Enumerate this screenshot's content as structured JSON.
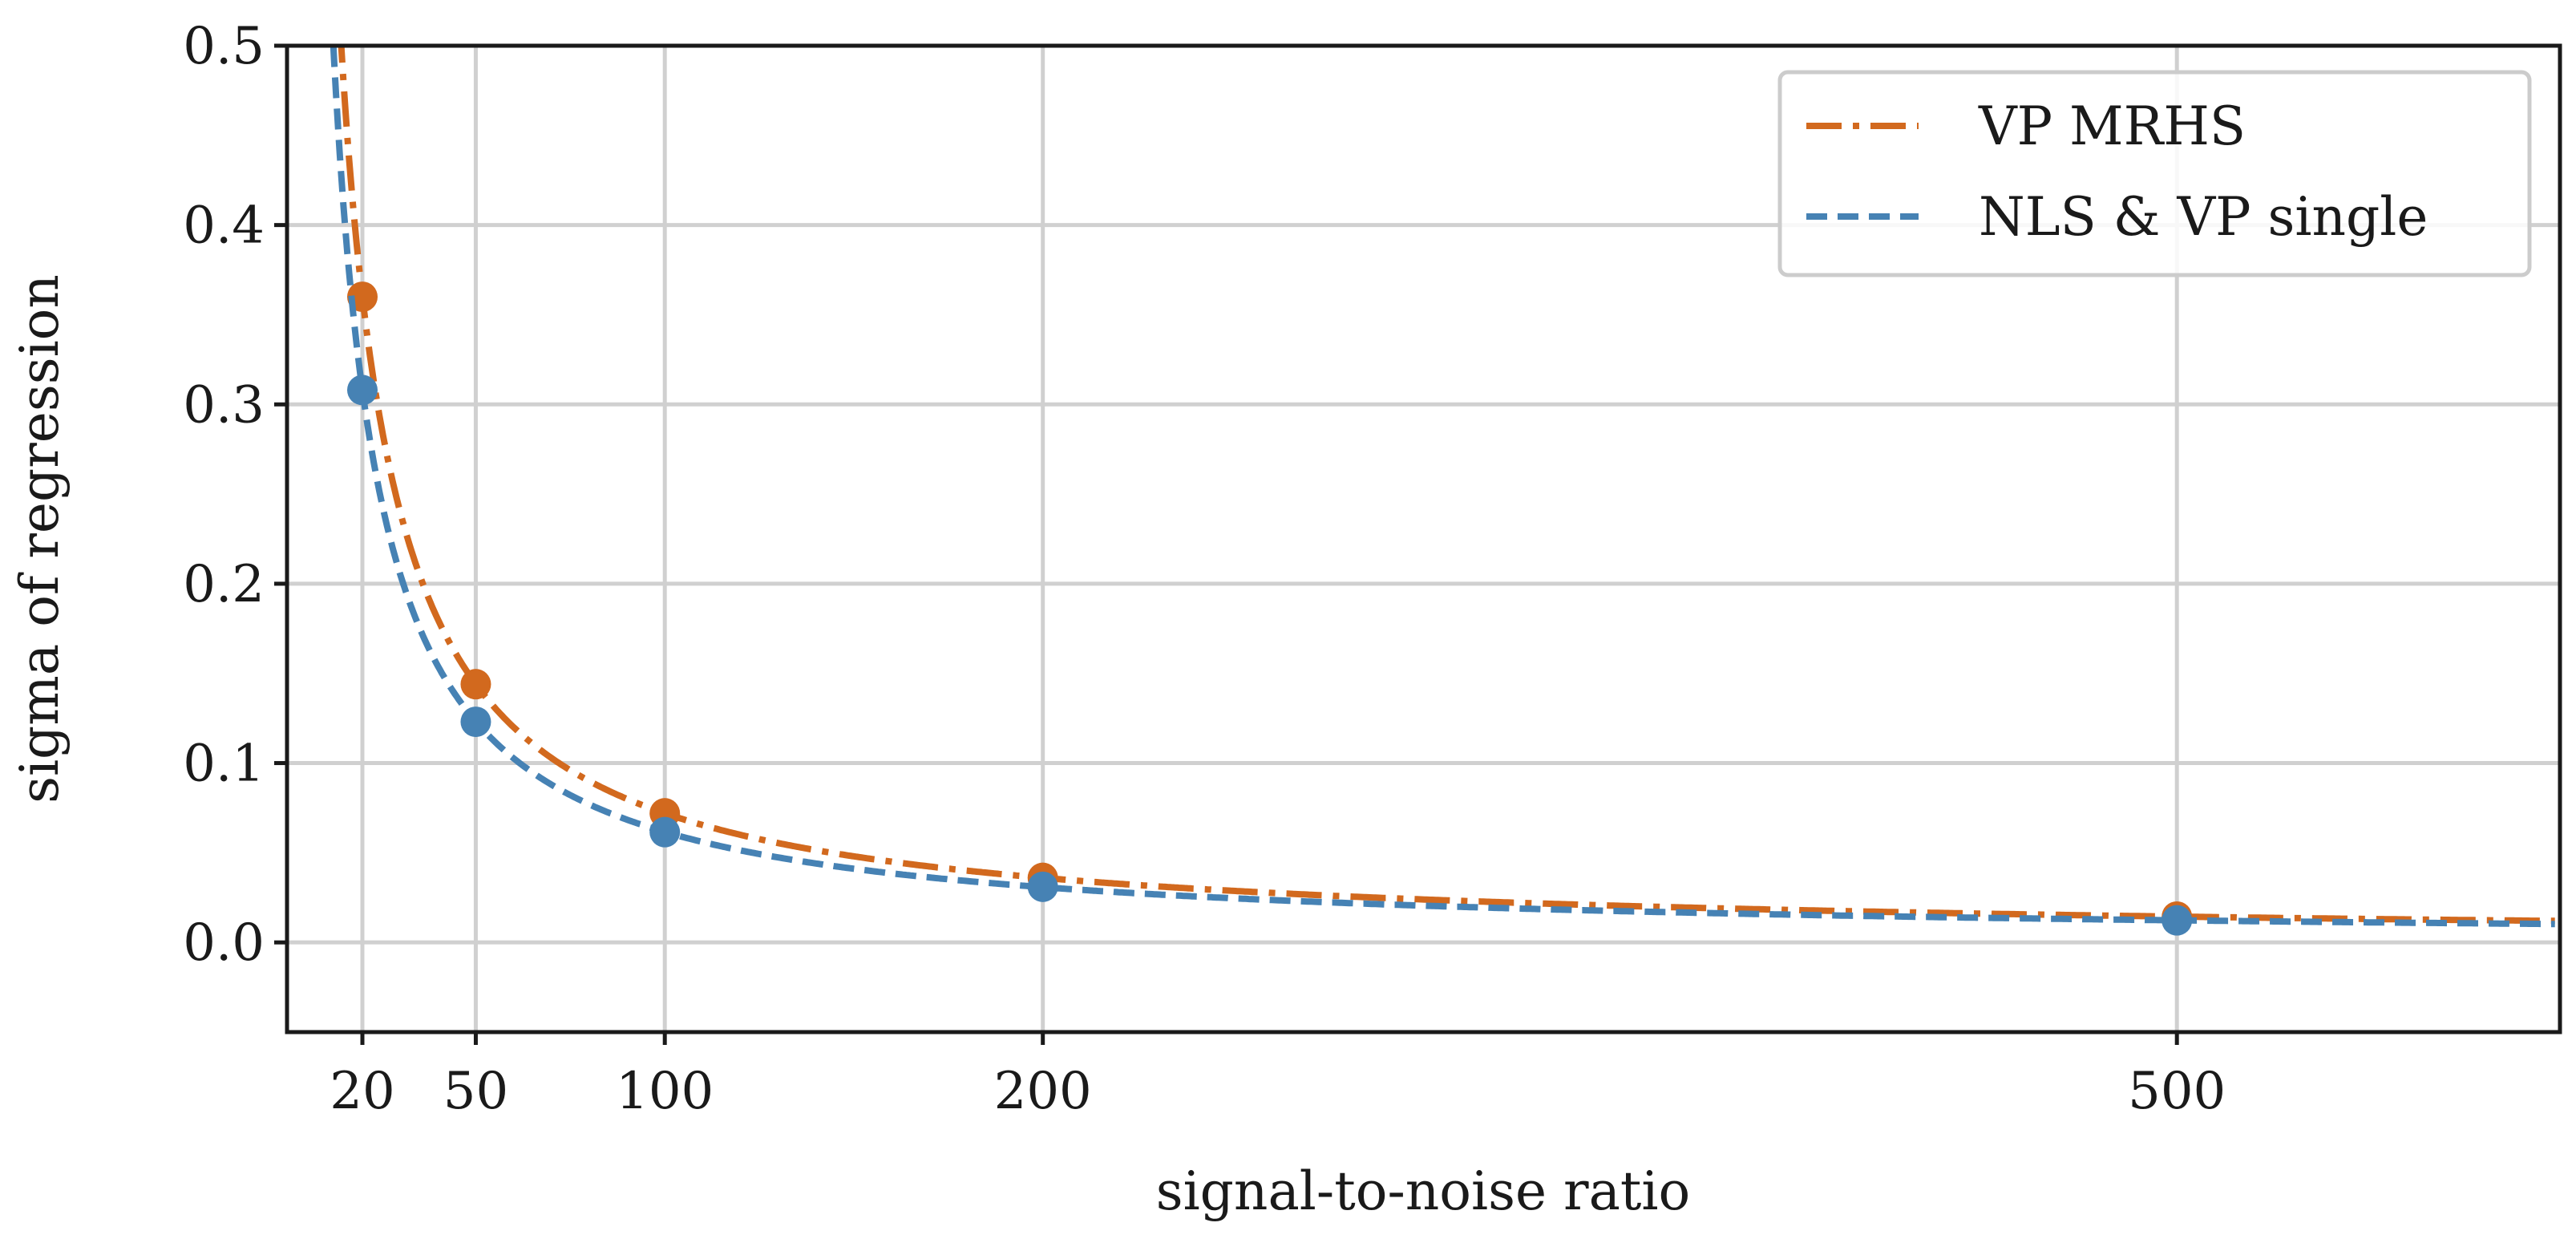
{
  "chart_data": {
    "type": "line",
    "title": "",
    "xlabel": "signal-to-noise ratio",
    "ylabel": "sigma of regression",
    "xlim": [
      0,
      600
    ],
    "ylim": [
      -0.05,
      0.5
    ],
    "xticks": [
      20,
      50,
      100,
      200,
      500
    ],
    "xtick_labels": [
      "20",
      "50",
      "100",
      "200",
      "500"
    ],
    "yticks": [
      0.0,
      0.1,
      0.2,
      0.3,
      0.4,
      0.5
    ],
    "ytick_labels": [
      "0.0",
      "0.1",
      "0.2",
      "0.3",
      "0.4",
      "0.5"
    ],
    "grid": true,
    "legend_position": "top-right",
    "series": [
      {
        "name": "VP MRHS",
        "color": "#d2691e",
        "line_style": "dashdot",
        "curve": "y = 7.2 / x",
        "points": [
          {
            "x": 20,
            "y": 0.36
          },
          {
            "x": 50,
            "y": 0.144
          },
          {
            "x": 100,
            "y": 0.072
          },
          {
            "x": 200,
            "y": 0.036
          },
          {
            "x": 500,
            "y": 0.0144
          }
        ]
      },
      {
        "name": "NLS & VP single",
        "color": "#4682b4",
        "line_style": "dashed",
        "curve": "y = 6.15 / x",
        "points": [
          {
            "x": 20,
            "y": 0.308
          },
          {
            "x": 50,
            "y": 0.123
          },
          {
            "x": 100,
            "y": 0.0615
          },
          {
            "x": 200,
            "y": 0.031
          },
          {
            "x": 500,
            "y": 0.0123
          }
        ]
      }
    ]
  }
}
